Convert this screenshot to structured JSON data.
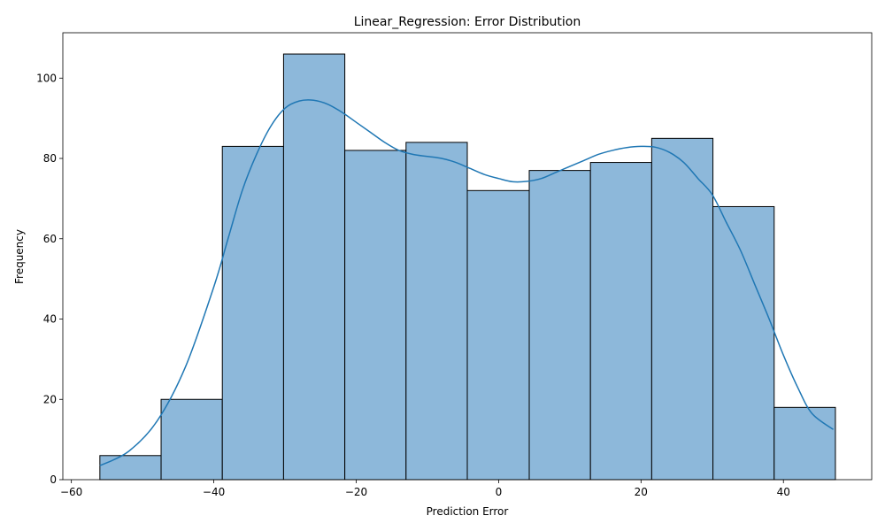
{
  "chart_data": {
    "type": "bar",
    "subtype": "histogram",
    "title": "Linear_Regression: Error Distribution",
    "xlabel": "Prediction Error",
    "ylabel": "Frequency",
    "xlim": [
      -61.2,
      52.4
    ],
    "ylim": [
      0,
      111.3
    ],
    "x_ticks": [
      -60,
      -40,
      -20,
      0,
      20,
      40
    ],
    "x_tick_labels": [
      "−60",
      "−40",
      "−20",
      "0",
      "20",
      "40"
    ],
    "y_ticks": [
      0,
      20,
      40,
      60,
      80,
      100
    ],
    "y_tick_labels": [
      "0",
      "20",
      "40",
      "60",
      "80",
      "100"
    ],
    "bins": [
      {
        "start": -56.0,
        "end": -47.4,
        "count": 6
      },
      {
        "start": -47.4,
        "end": -38.8,
        "count": 20
      },
      {
        "start": -38.8,
        "end": -30.2,
        "count": 83
      },
      {
        "start": -30.2,
        "end": -21.6,
        "count": 106
      },
      {
        "start": -21.6,
        "end": -13.0,
        "count": 82
      },
      {
        "start": -13.0,
        "end": -4.4,
        "count": 84
      },
      {
        "start": -4.4,
        "end": 4.3,
        "count": 72
      },
      {
        "start": 4.3,
        "end": 12.9,
        "count": 77
      },
      {
        "start": 12.9,
        "end": 21.5,
        "count": 79
      },
      {
        "start": 21.5,
        "end": 30.1,
        "count": 85
      },
      {
        "start": 30.1,
        "end": 38.7,
        "count": 68
      },
      {
        "start": 38.7,
        "end": 47.3,
        "count": 18
      }
    ],
    "kde": {
      "x": [
        -56,
        -52,
        -48,
        -44,
        -40,
        -38,
        -36,
        -34,
        -32,
        -30,
        -28,
        -26,
        -24,
        -22,
        -20,
        -18,
        -16,
        -14,
        -12,
        -10,
        -8,
        -6,
        -4,
        -2,
        0,
        2,
        4,
        6,
        8,
        10,
        12,
        14,
        16,
        18,
        20,
        22,
        24,
        26,
        28,
        30,
        32,
        34,
        36,
        38,
        40,
        42,
        44,
        47
      ],
      "y": [
        3.5,
        7,
        14.5,
        28,
        48,
        60,
        72,
        81,
        88,
        92.5,
        94.3,
        94.5,
        93.5,
        91.5,
        89,
        86.5,
        84,
        82,
        81,
        80.5,
        80,
        79,
        77.5,
        76,
        75,
        74.2,
        74.3,
        75,
        76.5,
        78,
        79.5,
        81,
        82,
        82.7,
        83,
        82.8,
        81.5,
        79,
        75,
        71,
        64,
        57,
        48.5,
        40,
        31,
        23,
        16.5,
        12.5
      ]
    },
    "colors": {
      "bar_fill": "#8db8da",
      "bar_edge": "#000000",
      "kde_line": "#1f77b4"
    },
    "grid": false,
    "legend": "none"
  }
}
